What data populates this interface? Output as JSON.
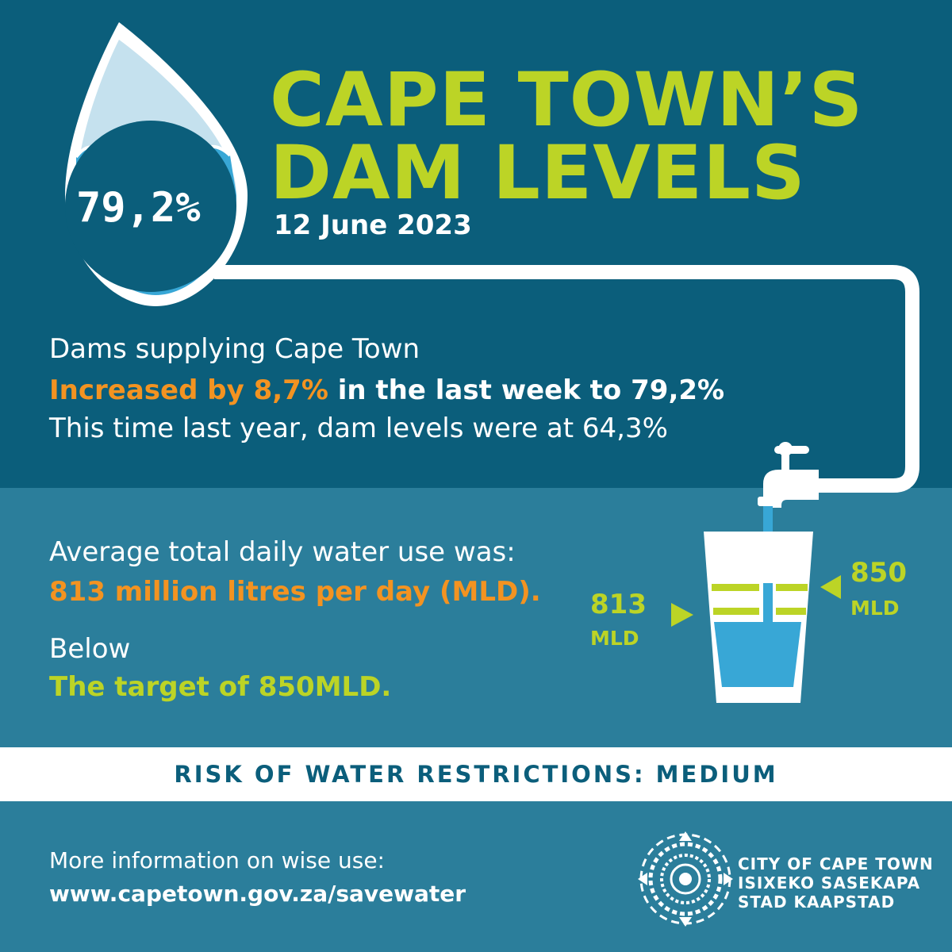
{
  "header": {
    "title_line1": "CAPE TOWN’S",
    "title_line2": "DAM LEVELS",
    "date": "12 June 2023"
  },
  "dam_level": {
    "percent_label": "79,2%",
    "fill_fraction": 0.792
  },
  "summary": {
    "line1": "Dams supplying Cape Town",
    "line2_highlight": "Increased by 8,7%",
    "line2_rest": " in the last week to 79,2%",
    "line3": "This time last year, dam levels were at 64,3%"
  },
  "usage": {
    "line1": "Average total daily water use was:",
    "line2": "813 million litres per day (MLD).",
    "line3": "Below",
    "line4": "The target of 850MLD."
  },
  "glass": {
    "usage_value": "813",
    "usage_unit": "MLD",
    "target_value": "850",
    "target_unit": "MLD"
  },
  "risk_banner": "RISK OF WATER RESTRICTIONS: MEDIUM",
  "footer": {
    "info_label": "More information on wise use:",
    "url": "www.capetown.gov.za/savewater",
    "org_line1": "CITY OF CAPE TOWN",
    "org_line2": "ISIXEKO SASEKAPA",
    "org_line3": "STAD KAAPSTAD"
  },
  "colors": {
    "dark_teal": "#0b5e7b",
    "mid_teal": "#2b7e9b",
    "lime": "#bcd426",
    "orange": "#f39321",
    "water_blue": "#38a7d6",
    "light_blue": "#c5e1ee"
  },
  "icons": [
    "water-drop-icon",
    "pipe-icon",
    "tap-icon",
    "glass-icon",
    "city-emblem-icon"
  ]
}
